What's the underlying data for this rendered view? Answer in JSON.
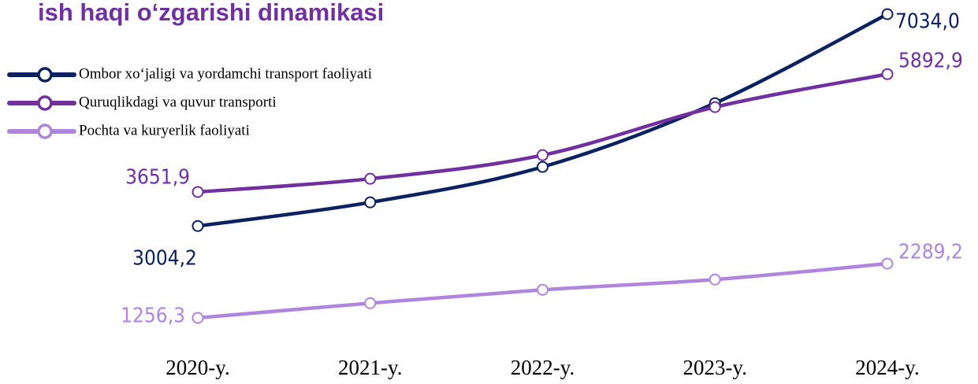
{
  "chart_data": {
    "type": "line",
    "title": "ish haqi o‘zgarishi dinamikasi",
    "categories": [
      "2020-y.",
      "2021-y.",
      "2022-y.",
      "2023-y.",
      "2024-y."
    ],
    "series": [
      {
        "name": "Ombor xo‘jaligi va yordamchi transport faoliyati",
        "color": "#0b2260",
        "values": [
          3004.2,
          3454,
          4128,
          5341,
          7034.0
        ],
        "value_labels": [
          "3004,2",
          null,
          null,
          null,
          "7034,0"
        ]
      },
      {
        "name": "Quruqlikdagi va quvur  transporti",
        "color": "#7030a0",
        "values": [
          3651.9,
          3903,
          4352,
          5266,
          5892.9
        ],
        "value_labels": [
          "3651,9",
          null,
          null,
          null,
          "5892,9"
        ]
      },
      {
        "name": "Pochta va kuryerlik faoliyati",
        "color": "#b085dd",
        "values": [
          1256.3,
          1536,
          1791,
          1986,
          2289.2
        ],
        "value_labels": [
          "1256,3",
          null,
          null,
          null,
          "2289,2"
        ]
      }
    ]
  }
}
